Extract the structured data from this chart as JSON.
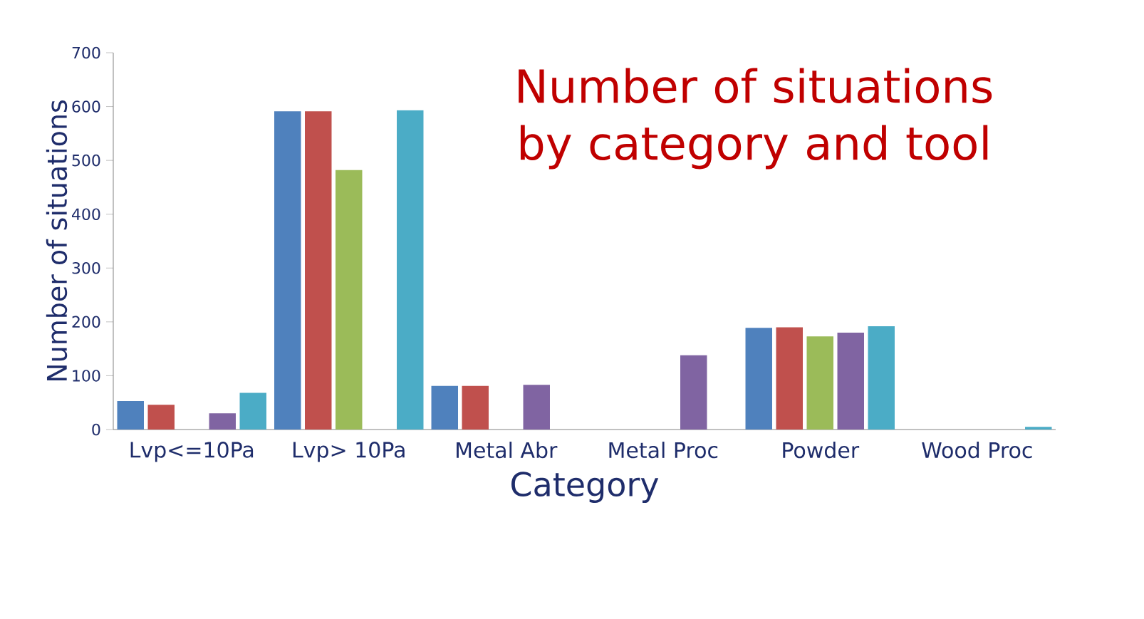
{
  "chart_data": {
    "type": "bar",
    "title": "Number of situations by category and tool",
    "xlabel": "Category",
    "ylabel": "Number of situations",
    "categories": [
      "Lvp<=10Pa",
      "Lvp> 10Pa",
      "Metal Abr",
      "Metal Proc",
      "Powder",
      "Wood Proc"
    ],
    "series": [
      {
        "color": "#4f81bd",
        "values": [
          53,
          591,
          81,
          null,
          189,
          null
        ]
      },
      {
        "color": "#c0504d",
        "values": [
          46,
          591,
          81,
          null,
          190,
          null
        ]
      },
      {
        "color": "#9bbb59",
        "values": [
          null,
          482,
          null,
          null,
          173,
          null
        ]
      },
      {
        "color": "#8064a2",
        "values": [
          30,
          null,
          83,
          138,
          180,
          null
        ]
      },
      {
        "color": "#4bacc6",
        "values": [
          68,
          593,
          null,
          null,
          192,
          5
        ]
      }
    ],
    "ylim": [
      0,
      700
    ],
    "yticks": [
      0,
      100,
      200,
      300,
      400,
      500,
      600,
      700
    ],
    "grid": false
  }
}
